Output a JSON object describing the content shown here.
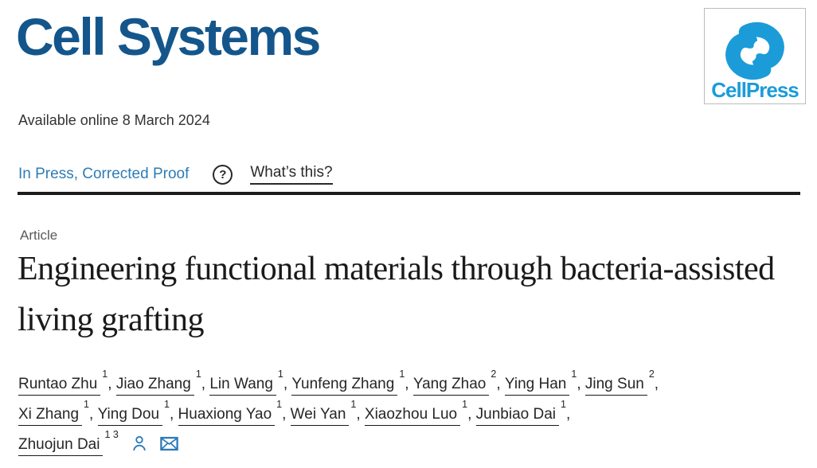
{
  "journal": {
    "name": "Cell Systems"
  },
  "publisher": {
    "name": "CellPress",
    "logo_color": "#1b9cd9"
  },
  "meta": {
    "available_online": "Available online 8 March 2024"
  },
  "status": {
    "label": "In Press, Corrected Proof",
    "help_glyph": "?",
    "help_link": "What’s this?"
  },
  "article": {
    "type_label": "Article",
    "title": "Engineering functional materials through bacteria-assisted living grafting"
  },
  "authors": [
    {
      "name": "Runtao Zhu",
      "sup": "1"
    },
    {
      "name": "Jiao Zhang",
      "sup": "1"
    },
    {
      "name": "Lin Wang",
      "sup": "1"
    },
    {
      "name": "Yunfeng Zhang",
      "sup": "1"
    },
    {
      "name": "Yang Zhao",
      "sup": "2"
    },
    {
      "name": "Ying Han",
      "sup": "1"
    },
    {
      "name": "Jing Sun",
      "sup": "2",
      "break_after": true
    },
    {
      "name": "Xi Zhang",
      "sup": "1"
    },
    {
      "name": "Ying Dou",
      "sup": "1"
    },
    {
      "name": "Huaxiong Yao",
      "sup": "1"
    },
    {
      "name": "Wei Yan",
      "sup": "1"
    },
    {
      "name": "Xiaozhou Luo",
      "sup": "1"
    },
    {
      "name": "Junbiao Dai",
      "sup": "1",
      "break_after": true
    },
    {
      "name": "Zhuojun Dai",
      "sup": "1 3",
      "corresponding": true,
      "last": true
    }
  ],
  "colors": {
    "wordmark_blue": "#14568c",
    "inpress_blue": "#2e7cb5",
    "icon_blue": "#2d7ab8",
    "divider": "#1c1c1c"
  }
}
